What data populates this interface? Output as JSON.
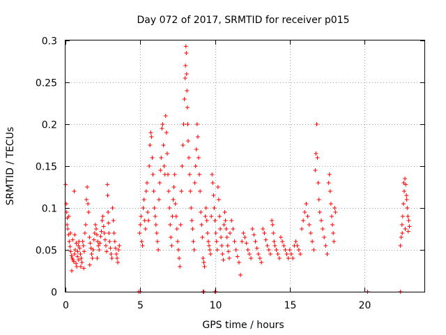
{
  "chart_data": {
    "type": "scatter",
    "title": "Day 072 of 2017, SRMTID for receiver p015",
    "xlabel": "GPS time / hours",
    "ylabel": "SRMTID / TECUs",
    "xlim": [
      0,
      24
    ],
    "ylim": [
      0,
      0.3
    ],
    "xticks": [
      0,
      5,
      10,
      15,
      20
    ],
    "xtick_labels": [
      "0",
      "5",
      "10",
      "15",
      "20"
    ],
    "yticks": [
      0,
      0.05,
      0.1,
      0.15,
      0.2,
      0.25,
      0.3
    ],
    "ytick_labels": [
      "0",
      "0.05",
      "0.1",
      "0.15",
      "0.2",
      "0.25",
      "0.3"
    ],
    "grid": true,
    "marker": "plus",
    "color": "#ff0000",
    "points": [
      [
        0.0,
        0.128
      ],
      [
        0.05,
        0.105
      ],
      [
        0.08,
        0.095
      ],
      [
        0.12,
        0.088
      ],
      [
        0.15,
        0.075
      ],
      [
        0.2,
        0.068
      ],
      [
        0.25,
        0.06
      ],
      [
        0.3,
        0.054
      ],
      [
        0.35,
        0.048
      ],
      [
        0.4,
        0.043
      ],
      [
        0.45,
        0.04
      ],
      [
        0.5,
        0.038
      ],
      [
        0.55,
        0.036
      ],
      [
        0.6,
        0.045
      ],
      [
        0.65,
        0.05
      ],
      [
        0.7,
        0.034
      ],
      [
        0.75,
        0.03
      ],
      [
        0.8,
        0.042
      ],
      [
        0.85,
        0.055
      ],
      [
        0.9,
        0.06
      ],
      [
        0.1,
        0.08
      ],
      [
        0.22,
        0.09
      ],
      [
        0.33,
        0.07
      ],
      [
        0.42,
        0.025
      ],
      [
        0.48,
        0.062
      ],
      [
        0.58,
        0.12
      ],
      [
        0.62,
        0.068
      ],
      [
        0.72,
        0.058
      ],
      [
        0.82,
        0.048
      ],
      [
        0.88,
        0.038
      ],
      [
        0.95,
        0.052
      ],
      [
        1.0,
        0.045
      ],
      [
        1.05,
        0.04
      ],
      [
        1.1,
        0.035
      ],
      [
        1.15,
        0.06
      ],
      [
        1.2,
        0.055
      ],
      [
        1.25,
        0.048
      ],
      [
        1.3,
        0.07
      ],
      [
        1.35,
        0.08
      ],
      [
        1.4,
        0.11
      ],
      [
        1.45,
        0.125
      ],
      [
        1.5,
        0.105
      ],
      [
        1.55,
        0.095
      ],
      [
        1.6,
        0.065
      ],
      [
        1.65,
        0.058
      ],
      [
        1.7,
        0.052
      ],
      [
        1.75,
        0.045
      ],
      [
        1.8,
        0.04
      ],
      [
        1.85,
        0.05
      ],
      [
        1.9,
        0.062
      ],
      [
        1.95,
        0.07
      ],
      [
        2.0,
        0.08
      ],
      [
        2.05,
        0.075
      ],
      [
        2.1,
        0.068
      ],
      [
        2.15,
        0.06
      ],
      [
        2.2,
        0.055
      ],
      [
        2.25,
        0.05
      ],
      [
        2.3,
        0.058
      ],
      [
        2.35,
        0.066
      ],
      [
        2.4,
        0.072
      ],
      [
        2.45,
        0.085
      ],
      [
        2.5,
        0.09
      ],
      [
        2.55,
        0.078
      ],
      [
        2.6,
        0.07
      ],
      [
        2.65,
        0.062
      ],
      [
        2.7,
        0.055
      ],
      [
        2.75,
        0.048
      ],
      [
        2.8,
        0.128
      ],
      [
        2.82,
        0.115
      ],
      [
        2.85,
        0.095
      ],
      [
        2.88,
        0.082
      ],
      [
        2.9,
        0.07
      ],
      [
        2.95,
        0.06
      ],
      [
        3.0,
        0.052
      ],
      [
        3.05,
        0.045
      ],
      [
        3.1,
        0.04
      ],
      [
        3.15,
        0.1
      ],
      [
        3.2,
        0.085
      ],
      [
        3.25,
        0.07
      ],
      [
        3.3,
        0.06
      ],
      [
        3.35,
        0.052
      ],
      [
        3.4,
        0.045
      ],
      [
        3.45,
        0.04
      ],
      [
        3.5,
        0.035
      ],
      [
        3.55,
        0.05
      ],
      [
        3.6,
        0.055
      ],
      [
        1.02,
        0.03
      ],
      [
        1.22,
        0.028
      ],
      [
        1.62,
        0.032
      ],
      [
        2.12,
        0.04
      ],
      [
        4.9,
        0.0
      ],
      [
        5.0,
        0.0
      ],
      [
        9.2,
        0.0
      ],
      [
        9.25,
        0.0
      ],
      [
        10.0,
        0.0
      ],
      [
        10.05,
        0.0
      ],
      [
        20.2,
        0.0
      ],
      [
        22.4,
        0.0
      ],
      [
        4.95,
        0.07
      ],
      [
        5.0,
        0.08
      ],
      [
        5.05,
        0.09
      ],
      [
        5.1,
        0.06
      ],
      [
        5.15,
        0.055
      ],
      [
        5.2,
        0.1
      ],
      [
        5.25,
        0.11
      ],
      [
        5.3,
        0.085
      ],
      [
        5.35,
        0.075
      ],
      [
        5.4,
        0.12
      ],
      [
        5.45,
        0.13
      ],
      [
        5.5,
        0.095
      ],
      [
        5.55,
        0.085
      ],
      [
        5.6,
        0.15
      ],
      [
        5.65,
        0.175
      ],
      [
        5.7,
        0.19
      ],
      [
        5.75,
        0.185
      ],
      [
        5.8,
        0.16
      ],
      [
        5.85,
        0.14
      ],
      [
        5.9,
        0.12
      ],
      [
        5.95,
        0.1
      ],
      [
        6.0,
        0.09
      ],
      [
        6.05,
        0.08
      ],
      [
        6.1,
        0.07
      ],
      [
        6.15,
        0.06
      ],
      [
        6.2,
        0.05
      ],
      [
        6.25,
        0.11
      ],
      [
        6.3,
        0.13
      ],
      [
        6.35,
        0.145
      ],
      [
        6.4,
        0.16
      ],
      [
        6.45,
        0.195
      ],
      [
        6.5,
        0.2
      ],
      [
        6.55,
        0.175
      ],
      [
        6.6,
        0.15
      ],
      [
        6.65,
        0.14
      ],
      [
        6.7,
        0.21
      ],
      [
        6.75,
        0.19
      ],
      [
        6.8,
        0.165
      ],
      [
        6.85,
        0.14
      ],
      [
        6.9,
        0.12
      ],
      [
        6.95,
        0.1
      ],
      [
        7.0,
        0.08
      ],
      [
        7.05,
        0.065
      ],
      [
        7.1,
        0.055
      ],
      [
        7.15,
        0.09
      ],
      [
        7.2,
        0.11
      ],
      [
        7.25,
        0.125
      ],
      [
        7.3,
        0.14
      ],
      [
        7.35,
        0.105
      ],
      [
        7.4,
        0.09
      ],
      [
        7.45,
        0.075
      ],
      [
        7.5,
        0.06
      ],
      [
        7.55,
        0.05
      ],
      [
        7.6,
        0.04
      ],
      [
        7.65,
        0.03
      ],
      [
        7.7,
        0.08
      ],
      [
        7.75,
        0.12
      ],
      [
        7.8,
        0.15
      ],
      [
        7.85,
        0.175
      ],
      [
        7.9,
        0.2
      ],
      [
        7.95,
        0.23
      ],
      [
        8.0,
        0.255
      ],
      [
        8.02,
        0.27
      ],
      [
        8.05,
        0.293
      ],
      [
        8.08,
        0.285
      ],
      [
        8.1,
        0.26
      ],
      [
        8.12,
        0.24
      ],
      [
        8.15,
        0.22
      ],
      [
        8.18,
        0.2
      ],
      [
        8.2,
        0.18
      ],
      [
        8.25,
        0.16
      ],
      [
        8.3,
        0.14
      ],
      [
        8.35,
        0.12
      ],
      [
        8.4,
        0.1
      ],
      [
        8.45,
        0.085
      ],
      [
        8.5,
        0.075
      ],
      [
        8.55,
        0.06
      ],
      [
        8.6,
        0.05
      ],
      [
        8.65,
        0.13
      ],
      [
        8.7,
        0.15
      ],
      [
        8.75,
        0.17
      ],
      [
        8.8,
        0.2
      ],
      [
        8.85,
        0.185
      ],
      [
        8.9,
        0.16
      ],
      [
        8.95,
        0.14
      ],
      [
        9.0,
        0.12
      ],
      [
        9.05,
        0.095
      ],
      [
        9.1,
        0.08
      ],
      [
        9.15,
        0.065
      ],
      [
        9.2,
        0.04
      ],
      [
        9.25,
        0.035
      ],
      [
        9.3,
        0.03
      ],
      [
        9.35,
        0.09
      ],
      [
        9.4,
        0.1
      ],
      [
        9.45,
        0.085
      ],
      [
        9.5,
        0.07
      ],
      [
        9.55,
        0.06
      ],
      [
        9.6,
        0.055
      ],
      [
        9.65,
        0.05
      ],
      [
        9.7,
        0.045
      ],
      [
        9.75,
        0.09
      ],
      [
        9.8,
        0.14
      ],
      [
        9.85,
        0.13
      ],
      [
        9.9,
        0.115
      ],
      [
        9.95,
        0.1
      ],
      [
        10.0,
        0.085
      ],
      [
        10.05,
        0.07
      ],
      [
        10.1,
        0.06
      ],
      [
        10.15,
        0.05
      ],
      [
        10.2,
        0.125
      ],
      [
        10.25,
        0.11
      ],
      [
        10.3,
        0.09
      ],
      [
        10.35,
        0.075
      ],
      [
        10.4,
        0.065
      ],
      [
        10.45,
        0.055
      ],
      [
        10.5,
        0.045
      ],
      [
        10.55,
        0.038
      ],
      [
        10.6,
        0.08
      ],
      [
        10.65,
        0.095
      ],
      [
        10.7,
        0.085
      ],
      [
        10.75,
        0.075
      ],
      [
        10.8,
        0.065
      ],
      [
        10.85,
        0.055
      ],
      [
        10.9,
        0.048
      ],
      [
        10.95,
        0.04
      ],
      [
        11.0,
        0.07
      ],
      [
        11.1,
        0.085
      ],
      [
        11.2,
        0.075
      ],
      [
        11.3,
        0.06
      ],
      [
        11.4,
        0.05
      ],
      [
        11.5,
        0.042
      ],
      [
        11.6,
        0.035
      ],
      [
        11.7,
        0.02
      ],
      [
        11.8,
        0.06
      ],
      [
        11.9,
        0.07
      ],
      [
        12.0,
        0.065
      ],
      [
        12.1,
        0.058
      ],
      [
        12.2,
        0.05
      ],
      [
        12.3,
        0.045
      ],
      [
        12.4,
        0.04
      ],
      [
        12.5,
        0.075
      ],
      [
        12.6,
        0.068
      ],
      [
        12.7,
        0.06
      ],
      [
        12.8,
        0.052
      ],
      [
        12.9,
        0.045
      ],
      [
        13.0,
        0.04
      ],
      [
        13.1,
        0.035
      ],
      [
        13.2,
        0.075
      ],
      [
        13.3,
        0.07
      ],
      [
        13.4,
        0.062
      ],
      [
        13.5,
        0.055
      ],
      [
        13.6,
        0.05
      ],
      [
        13.7,
        0.045
      ],
      [
        13.8,
        0.085
      ],
      [
        13.85,
        0.08
      ],
      [
        13.9,
        0.07
      ],
      [
        13.95,
        0.06
      ],
      [
        14.0,
        0.055
      ],
      [
        14.1,
        0.05
      ],
      [
        14.2,
        0.045
      ],
      [
        14.3,
        0.04
      ],
      [
        14.4,
        0.065
      ],
      [
        14.5,
        0.06
      ],
      [
        14.6,
        0.055
      ],
      [
        14.7,
        0.05
      ],
      [
        14.8,
        0.045
      ],
      [
        14.9,
        0.04
      ],
      [
        15.0,
        0.05
      ],
      [
        15.1,
        0.045
      ],
      [
        15.2,
        0.04
      ],
      [
        15.3,
        0.055
      ],
      [
        15.4,
        0.06
      ],
      [
        15.5,
        0.055
      ],
      [
        15.6,
        0.05
      ],
      [
        15.7,
        0.045
      ],
      [
        15.8,
        0.075
      ],
      [
        15.9,
        0.085
      ],
      [
        16.0,
        0.095
      ],
      [
        16.1,
        0.105
      ],
      [
        16.2,
        0.09
      ],
      [
        16.3,
        0.08
      ],
      [
        16.4,
        0.07
      ],
      [
        16.5,
        0.06
      ],
      [
        16.6,
        0.05
      ],
      [
        16.7,
        0.145
      ],
      [
        16.75,
        0.165
      ],
      [
        16.8,
        0.2
      ],
      [
        16.85,
        0.16
      ],
      [
        16.9,
        0.13
      ],
      [
        16.95,
        0.11
      ],
      [
        17.0,
        0.095
      ],
      [
        17.1,
        0.085
      ],
      [
        17.2,
        0.075
      ],
      [
        17.3,
        0.065
      ],
      [
        17.4,
        0.055
      ],
      [
        17.5,
        0.045
      ],
      [
        17.6,
        0.13
      ],
      [
        17.65,
        0.14
      ],
      [
        17.7,
        0.12
      ],
      [
        17.75,
        0.105
      ],
      [
        17.8,
        0.09
      ],
      [
        17.85,
        0.08
      ],
      [
        17.9,
        0.07
      ],
      [
        17.95,
        0.06
      ],
      [
        18.0,
        0.1
      ],
      [
        18.05,
        0.095
      ],
      [
        22.4,
        0.055
      ],
      [
        22.45,
        0.065
      ],
      [
        22.5,
        0.08
      ],
      [
        22.55,
        0.09
      ],
      [
        22.6,
        0.105
      ],
      [
        22.65,
        0.12
      ],
      [
        22.7,
        0.135
      ],
      [
        22.75,
        0.128
      ],
      [
        22.8,
        0.115
      ],
      [
        22.85,
        0.1
      ],
      [
        22.9,
        0.09
      ],
      [
        22.95,
        0.085
      ],
      [
        23.0,
        0.078
      ],
      [
        22.52,
        0.07
      ],
      [
        22.62,
        0.13
      ],
      [
        22.72,
        0.075
      ],
      [
        22.82,
        0.11
      ],
      [
        22.92,
        0.072
      ]
    ]
  }
}
